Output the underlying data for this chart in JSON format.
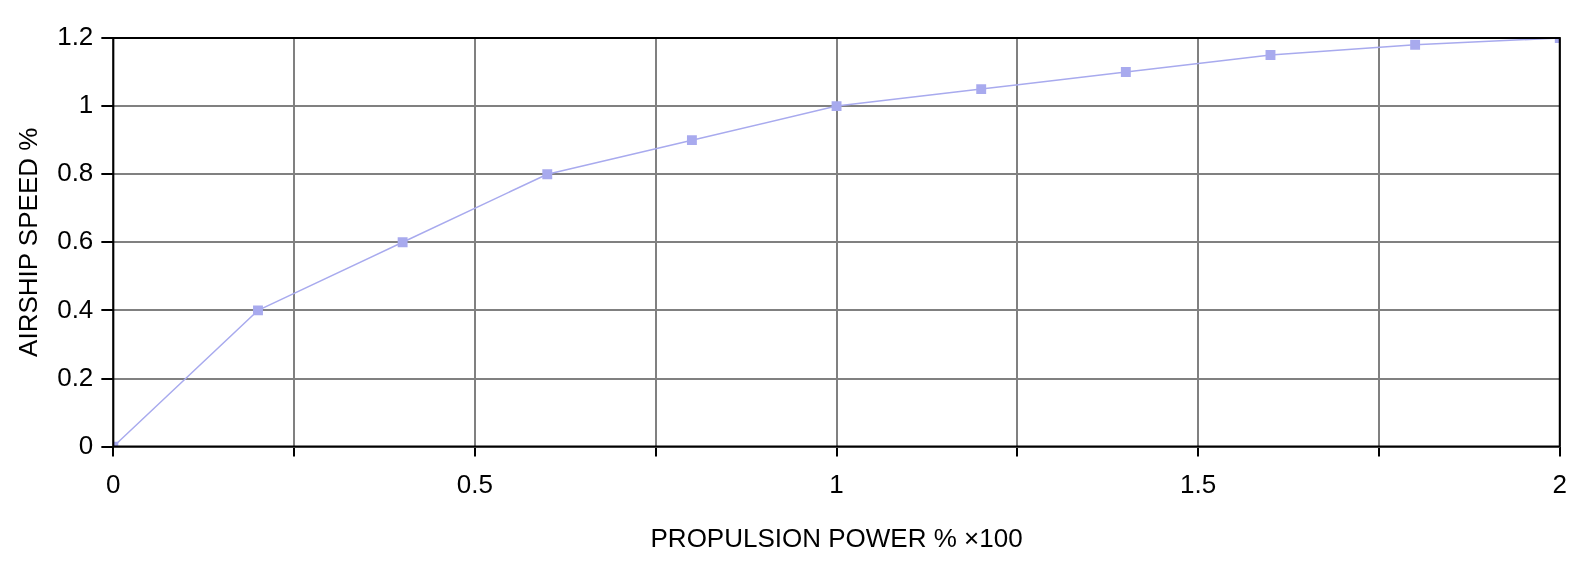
{
  "chart_data": {
    "type": "line",
    "xlabel": "PROPULSION POWER % ×100",
    "ylabel": "AIRSHIP SPEED %",
    "x": [
      0,
      0.2,
      0.4,
      0.6,
      0.8,
      1,
      1.2,
      1.4,
      1.6,
      1.8,
      2
    ],
    "series": [
      {
        "color": "#a8aaee",
        "values": [
          0,
          0.4,
          0.6,
          0.8,
          0.9,
          1,
          1.05,
          1.1,
          1.15,
          1.18,
          1.2
        ]
      }
    ],
    "xlim": [
      0,
      2
    ],
    "xticks": [
      0,
      {
        "value": 0.25,
        "label": null
      },
      0.5,
      {
        "value": 0.75,
        "label": null
      },
      1,
      {
        "value": 1.25,
        "label": null
      },
      1.5,
      {
        "value": 1.75,
        "label": null
      },
      2
    ],
    "ylim": [
      0,
      1.2
    ],
    "yticks": [
      0,
      0.2,
      0.4,
      0.6,
      0.8,
      1,
      1.2
    ],
    "grid": true,
    "legend": false,
    "marker": "square",
    "line_style": "solid"
  }
}
